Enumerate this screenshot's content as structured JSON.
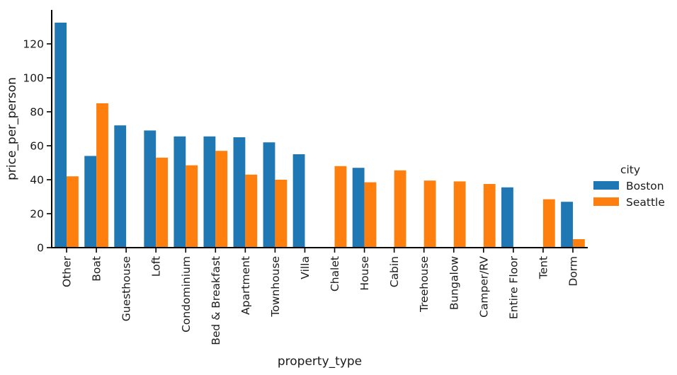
{
  "chart_data": {
    "type": "bar",
    "title": "",
    "xlabel": "property_type",
    "ylabel": "price_per_person",
    "ylim": [
      0,
      140
    ],
    "yticks": [
      0,
      20,
      40,
      60,
      80,
      100,
      120
    ],
    "grid": false,
    "legend_placement": "right",
    "legend_title": "city",
    "categories": [
      "Other",
      "Boat",
      "Guesthouse",
      "Loft",
      "Condominium",
      "Bed & Breakfast",
      "Apartment",
      "Townhouse",
      "Villa",
      "Chalet",
      "House",
      "Cabin",
      "Treehouse",
      "Bungalow",
      "Camper/RV",
      "Entire Floor",
      "Tent",
      "Dorm"
    ],
    "series": [
      {
        "name": "Boston",
        "color": "#1f77b4",
        "values": [
          132.5,
          54,
          72,
          69,
          65.5,
          65.5,
          65,
          62,
          55,
          null,
          47,
          null,
          null,
          null,
          null,
          35.5,
          null,
          27
        ]
      },
      {
        "name": "Seattle",
        "color": "#ff7f0e",
        "values": [
          42,
          85,
          null,
          53,
          48.5,
          57,
          43,
          40,
          null,
          48,
          38.5,
          45.5,
          39.5,
          39,
          37.5,
          null,
          28.5,
          5
        ]
      }
    ]
  }
}
